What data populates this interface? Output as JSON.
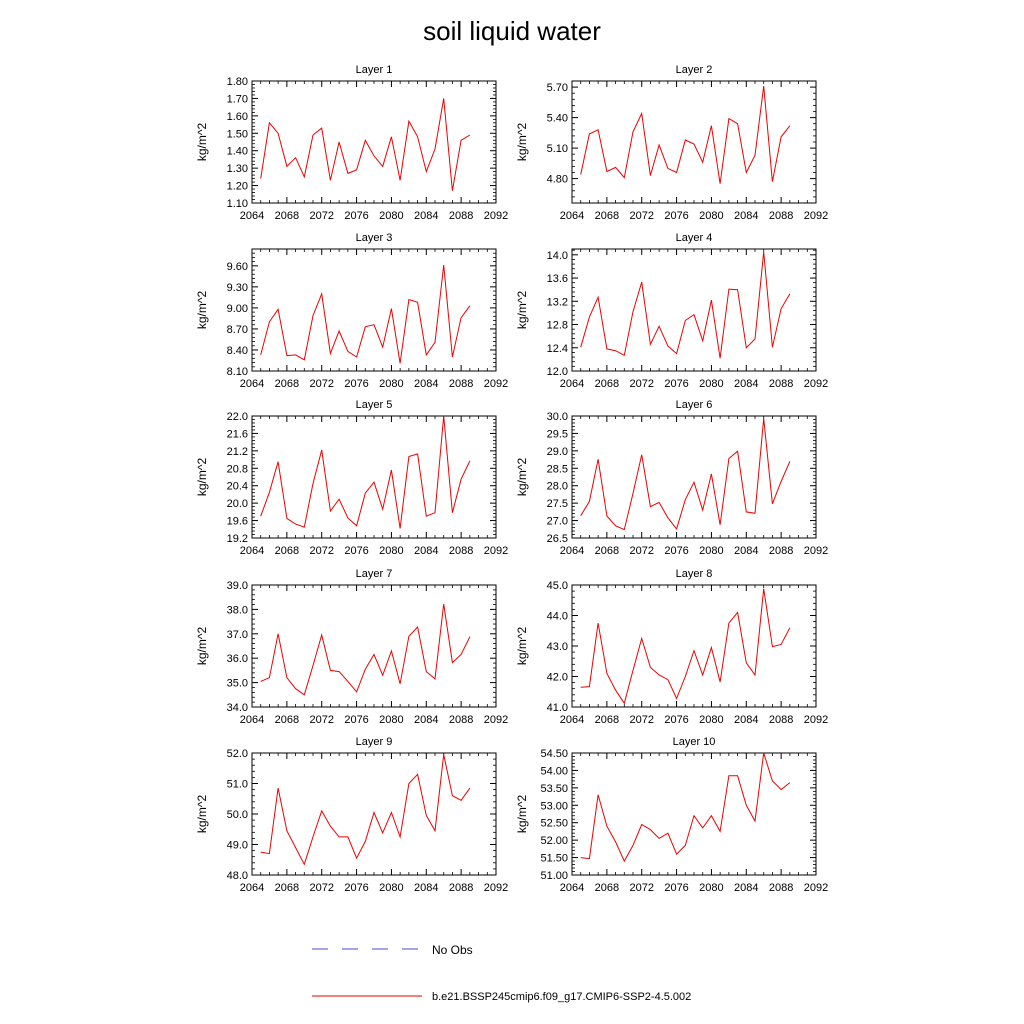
{
  "figure": {
    "title": "soil liquid water",
    "legend": [
      {
        "label": "No Obs",
        "color": "#4a4ad8",
        "style": "dashed"
      },
      {
        "label": "b.e21.BSSP245cmip6.f09_g17.CMIP6-SSP2-4.5.002",
        "color": "#ee0000",
        "style": "solid"
      }
    ]
  },
  "chart_data": [
    {
      "type": "line",
      "title": "Layer 1",
      "ylabel": "kg/m^2",
      "xlim": [
        2064,
        2092
      ],
      "xticks": [
        "2064",
        "2068",
        "2072",
        "2076",
        "2080",
        "2084",
        "2088",
        "2092"
      ],
      "ylim": [
        1.1,
        1.8
      ],
      "yticks": [
        "1.10",
        "1.20",
        "1.30",
        "1.40",
        "1.50",
        "1.60",
        "1.70",
        "1.80"
      ],
      "series": [
        {
          "color": "#ee0000",
          "x": [
            2065,
            2066,
            2067,
            2068,
            2069,
            2070,
            2071,
            2072,
            2073,
            2074,
            2075,
            2076,
            2077,
            2078,
            2079,
            2080,
            2081,
            2082,
            2083,
            2084,
            2085,
            2086,
            2087,
            2088,
            2089
          ],
          "values": [
            1.24,
            1.56,
            1.5,
            1.31,
            1.36,
            1.25,
            1.49,
            1.53,
            1.23,
            1.45,
            1.27,
            1.29,
            1.46,
            1.37,
            1.31,
            1.48,
            1.23,
            1.57,
            1.48,
            1.28,
            1.41,
            1.7,
            1.17,
            1.46,
            1.49
          ]
        }
      ]
    },
    {
      "type": "line",
      "title": "Layer 2",
      "ylabel": "kg/m^2",
      "xlim": [
        2064,
        2092
      ],
      "xticks": [
        "2064",
        "2068",
        "2072",
        "2076",
        "2080",
        "2084",
        "2088",
        "2092"
      ],
      "ylim": [
        4.56,
        5.76
      ],
      "yticks": [
        "4.80",
        "5.10",
        "5.40",
        "5.70"
      ],
      "series": [
        {
          "color": "#ee0000",
          "x": [
            2065,
            2066,
            2067,
            2068,
            2069,
            2070,
            2071,
            2072,
            2073,
            2074,
            2075,
            2076,
            2077,
            2078,
            2079,
            2080,
            2081,
            2082,
            2083,
            2084,
            2085,
            2086,
            2087,
            2088,
            2089
          ],
          "values": [
            4.84,
            5.24,
            5.28,
            4.87,
            4.91,
            4.81,
            5.26,
            5.44,
            4.83,
            5.13,
            4.9,
            4.86,
            5.18,
            5.14,
            4.96,
            5.32,
            4.75,
            5.39,
            5.34,
            4.86,
            5.03,
            5.71,
            4.77,
            5.21,
            5.32
          ]
        }
      ]
    },
    {
      "type": "line",
      "title": "Layer 3",
      "ylabel": "kg/m^2",
      "xlim": [
        2064,
        2092
      ],
      "xticks": [
        "2064",
        "2068",
        "2072",
        "2076",
        "2080",
        "2084",
        "2088",
        "2092"
      ],
      "ylim": [
        8.1,
        9.84
      ],
      "yticks": [
        "8.10",
        "8.40",
        "8.70",
        "9.00",
        "9.30",
        "9.60"
      ],
      "series": [
        {
          "color": "#ee0000",
          "x": [
            2065,
            2066,
            2067,
            2068,
            2069,
            2070,
            2071,
            2072,
            2073,
            2074,
            2075,
            2076,
            2077,
            2078,
            2079,
            2080,
            2081,
            2082,
            2083,
            2084,
            2085,
            2086,
            2087,
            2088,
            2089
          ],
          "values": [
            8.33,
            8.8,
            8.98,
            8.32,
            8.33,
            8.26,
            8.89,
            9.2,
            8.35,
            8.67,
            8.38,
            8.3,
            8.73,
            8.76,
            8.44,
            8.99,
            8.21,
            9.12,
            9.08,
            8.33,
            8.51,
            9.61,
            8.3,
            8.86,
            9.03
          ]
        }
      ]
    },
    {
      "type": "line",
      "title": "Layer 4",
      "ylabel": "kg/m^2",
      "xlim": [
        2064,
        2092
      ],
      "xticks": [
        "2064",
        "2068",
        "2072",
        "2076",
        "2080",
        "2084",
        "2088",
        "2092"
      ],
      "ylim": [
        12.0,
        14.1
      ],
      "yticks": [
        "12.0",
        "12.4",
        "12.8",
        "13.2",
        "13.6",
        "14.0"
      ],
      "series": [
        {
          "color": "#ee0000",
          "x": [
            2065,
            2066,
            2067,
            2068,
            2069,
            2070,
            2071,
            2072,
            2073,
            2074,
            2075,
            2076,
            2077,
            2078,
            2079,
            2080,
            2081,
            2082,
            2083,
            2084,
            2085,
            2086,
            2087,
            2088,
            2089
          ],
          "values": [
            12.41,
            12.93,
            13.27,
            12.38,
            12.35,
            12.27,
            13.02,
            13.53,
            12.46,
            12.77,
            12.43,
            12.3,
            12.87,
            12.97,
            12.52,
            13.22,
            12.22,
            13.41,
            13.4,
            12.4,
            12.55,
            14.05,
            12.41,
            13.07,
            13.33
          ]
        }
      ]
    },
    {
      "type": "line",
      "title": "Layer 5",
      "ylabel": "kg/m^2",
      "xlim": [
        2064,
        2092
      ],
      "xticks": [
        "2064",
        "2068",
        "2072",
        "2076",
        "2080",
        "2084",
        "2088",
        "2092"
      ],
      "ylim": [
        19.2,
        22.0
      ],
      "yticks": [
        "19.2",
        "19.6",
        "20.0",
        "20.4",
        "20.8",
        "21.2",
        "21.6",
        "22.0"
      ],
      "series": [
        {
          "color": "#ee0000",
          "x": [
            2065,
            2066,
            2067,
            2068,
            2069,
            2070,
            2071,
            2072,
            2073,
            2074,
            2075,
            2076,
            2077,
            2078,
            2079,
            2080,
            2081,
            2082,
            2083,
            2084,
            2085,
            2086,
            2087,
            2088,
            2089
          ],
          "values": [
            19.7,
            20.25,
            20.95,
            19.65,
            19.52,
            19.45,
            20.45,
            21.22,
            19.82,
            20.09,
            19.66,
            19.48,
            20.23,
            20.48,
            19.86,
            20.76,
            19.42,
            21.07,
            21.13,
            19.7,
            19.78,
            22.0,
            19.78,
            20.55,
            20.97
          ]
        }
      ]
    },
    {
      "type": "line",
      "title": "Layer 6",
      "ylabel": "kg/m^2",
      "xlim": [
        2064,
        2092
      ],
      "xticks": [
        "2064",
        "2068",
        "2072",
        "2076",
        "2080",
        "2084",
        "2088",
        "2092"
      ],
      "ylim": [
        26.5,
        30.0
      ],
      "yticks": [
        "26.5",
        "27.0",
        "27.5",
        "28.0",
        "28.5",
        "29.0",
        "29.5",
        "30.0"
      ],
      "series": [
        {
          "color": "#ee0000",
          "x": [
            2065,
            2066,
            2067,
            2068,
            2069,
            2070,
            2071,
            2072,
            2073,
            2074,
            2075,
            2076,
            2077,
            2078,
            2079,
            2080,
            2081,
            2082,
            2083,
            2084,
            2085,
            2086,
            2087,
            2088,
            2089
          ],
          "values": [
            27.14,
            27.55,
            28.76,
            27.13,
            26.85,
            26.74,
            27.78,
            28.89,
            27.4,
            27.52,
            27.08,
            26.76,
            27.6,
            28.1,
            27.3,
            28.34,
            26.88,
            28.78,
            28.99,
            27.25,
            27.21,
            29.93,
            27.48,
            28.12,
            28.7
          ]
        }
      ]
    },
    {
      "type": "line",
      "title": "Layer 7",
      "ylabel": "kg/m^2",
      "xlim": [
        2064,
        2092
      ],
      "xticks": [
        "2064",
        "2068",
        "2072",
        "2076",
        "2080",
        "2084",
        "2088",
        "2092"
      ],
      "ylim": [
        34.0,
        39.0
      ],
      "yticks": [
        "34.0",
        "35.0",
        "36.0",
        "37.0",
        "38.0",
        "39.0"
      ],
      "series": [
        {
          "color": "#ee0000",
          "x": [
            2065,
            2066,
            2067,
            2068,
            2069,
            2070,
            2071,
            2072,
            2073,
            2074,
            2075,
            2076,
            2077,
            2078,
            2079,
            2080,
            2081,
            2082,
            2083,
            2084,
            2085,
            2086,
            2087,
            2088,
            2089
          ],
          "values": [
            35.05,
            35.2,
            37.0,
            35.2,
            34.75,
            34.5,
            35.7,
            36.95,
            35.5,
            35.45,
            35.05,
            34.62,
            35.55,
            36.15,
            35.3,
            36.3,
            34.95,
            36.9,
            37.28,
            35.45,
            35.15,
            38.22,
            35.82,
            36.15,
            36.88
          ]
        }
      ]
    },
    {
      "type": "line",
      "title": "Layer 8",
      "ylabel": "kg/m^2",
      "xlim": [
        2064,
        2092
      ],
      "xticks": [
        "2064",
        "2068",
        "2072",
        "2076",
        "2080",
        "2084",
        "2088",
        "2092"
      ],
      "ylim": [
        41.0,
        45.0
      ],
      "yticks": [
        "41.0",
        "42.0",
        "43.0",
        "44.0",
        "45.0"
      ],
      "series": [
        {
          "color": "#ee0000",
          "x": [
            2065,
            2066,
            2067,
            2068,
            2069,
            2070,
            2071,
            2072,
            2073,
            2074,
            2075,
            2076,
            2077,
            2078,
            2079,
            2080,
            2081,
            2082,
            2083,
            2084,
            2085,
            2086,
            2087,
            2088,
            2089
          ],
          "values": [
            41.65,
            41.67,
            43.75,
            42.1,
            41.55,
            41.12,
            42.2,
            43.25,
            42.3,
            42.05,
            41.9,
            41.28,
            42.0,
            42.85,
            42.05,
            42.95,
            41.82,
            43.75,
            44.1,
            42.45,
            42.05,
            44.88,
            42.98,
            43.05,
            43.6
          ]
        }
      ]
    },
    {
      "type": "line",
      "title": "Layer 9",
      "ylabel": "kg/m^2",
      "xlim": [
        2064,
        2092
      ],
      "xticks": [
        "2064",
        "2068",
        "2072",
        "2076",
        "2080",
        "2084",
        "2088",
        "2092"
      ],
      "ylim": [
        48.0,
        52.0
      ],
      "yticks": [
        "48.0",
        "49.0",
        "50.0",
        "51.0",
        "52.0"
      ],
      "series": [
        {
          "color": "#ee0000",
          "x": [
            2065,
            2066,
            2067,
            2068,
            2069,
            2070,
            2071,
            2072,
            2073,
            2074,
            2075,
            2076,
            2077,
            2078,
            2079,
            2080,
            2081,
            2082,
            2083,
            2084,
            2085,
            2086,
            2087,
            2088,
            2089
          ],
          "values": [
            48.75,
            48.7,
            50.85,
            49.45,
            48.9,
            48.35,
            49.25,
            50.1,
            49.6,
            49.25,
            49.25,
            48.55,
            49.1,
            50.05,
            49.38,
            50.05,
            49.25,
            51.0,
            51.3,
            49.95,
            49.45,
            51.95,
            50.6,
            50.45,
            50.85
          ]
        }
      ]
    },
    {
      "type": "line",
      "title": "Layer 10",
      "ylabel": "kg/m^2",
      "xlim": [
        2064,
        2092
      ],
      "xticks": [
        "2064",
        "2068",
        "2072",
        "2076",
        "2080",
        "2084",
        "2088",
        "2092"
      ],
      "ylim": [
        51.0,
        54.5
      ],
      "yticks": [
        "51.00",
        "51.50",
        "52.00",
        "52.50",
        "53.00",
        "53.50",
        "54.00",
        "54.50"
      ],
      "series": [
        {
          "color": "#ee0000",
          "x": [
            2065,
            2066,
            2067,
            2068,
            2069,
            2070,
            2071,
            2072,
            2073,
            2074,
            2075,
            2076,
            2077,
            2078,
            2079,
            2080,
            2081,
            2082,
            2083,
            2084,
            2085,
            2086,
            2087,
            2088,
            2089
          ],
          "values": [
            51.5,
            51.47,
            53.3,
            52.4,
            51.95,
            51.4,
            51.85,
            52.45,
            52.3,
            52.05,
            52.2,
            51.6,
            51.85,
            52.7,
            52.35,
            52.7,
            52.25,
            53.85,
            53.85,
            53.0,
            52.55,
            54.5,
            53.7,
            53.45,
            53.65
          ]
        }
      ]
    }
  ]
}
